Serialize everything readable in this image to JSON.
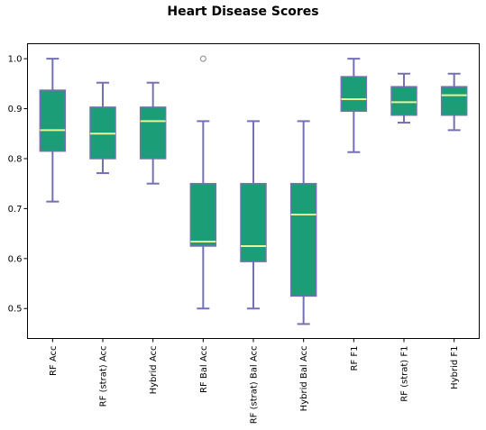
{
  "chart_data": {
    "type": "box",
    "title": "Heart Disease Scores",
    "xlabel": "",
    "ylabel": "",
    "ylim": [
      0.44,
      1.03
    ],
    "yticks": [
      0.5,
      0.6,
      0.7,
      0.8,
      0.9,
      1.0
    ],
    "ytick_labels": [
      "0.5",
      "0.6",
      "0.7",
      "0.8",
      "0.9",
      "1.0"
    ],
    "grid": false,
    "colors": {
      "box_fill": "#1b9e77",
      "box_edge": "#7570b3",
      "whisker": "#7570b3",
      "median": "#e6f598",
      "flier_edge": "#888888"
    },
    "categories": [
      "RF Acc",
      "RF (strat) Acc",
      "Hybrid Acc",
      "RF Bal Acc",
      "RF (strat) Bal Acc",
      "Hybrid Bal Acc",
      "RF F1",
      "RF (strat) F1",
      "Hybrid F1"
    ],
    "boxes": [
      {
        "label": "RF Acc",
        "whislo": 0.714,
        "q1": 0.815,
        "med": 0.857,
        "q3": 0.937,
        "whishi": 1.0,
        "fliers": []
      },
      {
        "label": "RF (strat) Acc",
        "whislo": 0.771,
        "q1": 0.8,
        "med": 0.85,
        "q3": 0.903,
        "whishi": 0.952,
        "fliers": []
      },
      {
        "label": "Hybrid Acc",
        "whislo": 0.75,
        "q1": 0.8,
        "med": 0.875,
        "q3": 0.903,
        "whishi": 0.952,
        "fliers": []
      },
      {
        "label": "RF Bal Acc",
        "whislo": 0.5,
        "q1": 0.625,
        "med": 0.634,
        "q3": 0.75,
        "whishi": 0.875,
        "fliers": [
          1.0
        ]
      },
      {
        "label": "RF (strat) Bal Acc",
        "whislo": 0.5,
        "q1": 0.594,
        "med": 0.625,
        "q3": 0.75,
        "whishi": 0.875,
        "fliers": []
      },
      {
        "label": "Hybrid Bal Acc",
        "whislo": 0.469,
        "q1": 0.525,
        "med": 0.688,
        "q3": 0.75,
        "whishi": 0.875,
        "fliers": []
      },
      {
        "label": "RF F1",
        "whislo": 0.813,
        "q1": 0.895,
        "med": 0.919,
        "q3": 0.964,
        "whishi": 1.0,
        "fliers": []
      },
      {
        "label": "RF (strat) F1",
        "whislo": 0.872,
        "q1": 0.887,
        "med": 0.913,
        "q3": 0.944,
        "whishi": 0.97,
        "fliers": []
      },
      {
        "label": "Hybrid F1",
        "whislo": 0.857,
        "q1": 0.887,
        "med": 0.927,
        "q3": 0.944,
        "whishi": 0.97,
        "fliers": []
      }
    ]
  }
}
